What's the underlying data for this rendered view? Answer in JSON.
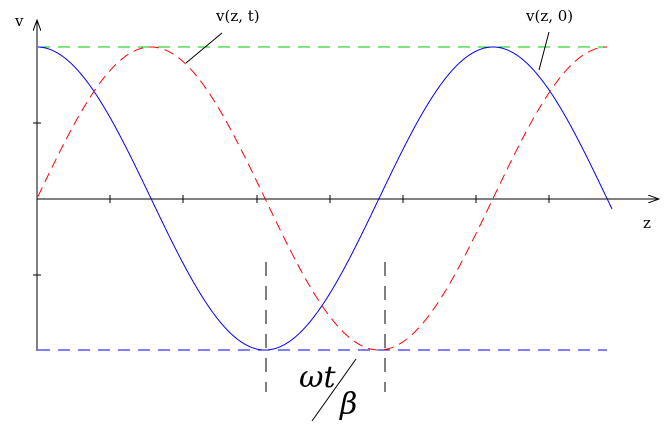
{
  "labels": {
    "y_axis": "v",
    "x_axis": "z",
    "curve_shifted": "v(z, t)",
    "curve_original": "v(z, 0)",
    "shift_numerator": "ωt",
    "shift_denominator": "β"
  },
  "colors": {
    "original_wave": "#0000ff",
    "shifted_wave": "#ff0000",
    "upper_guide": "#00cc00",
    "lower_guide": "#0000ff",
    "axes": "#000000"
  }
}
